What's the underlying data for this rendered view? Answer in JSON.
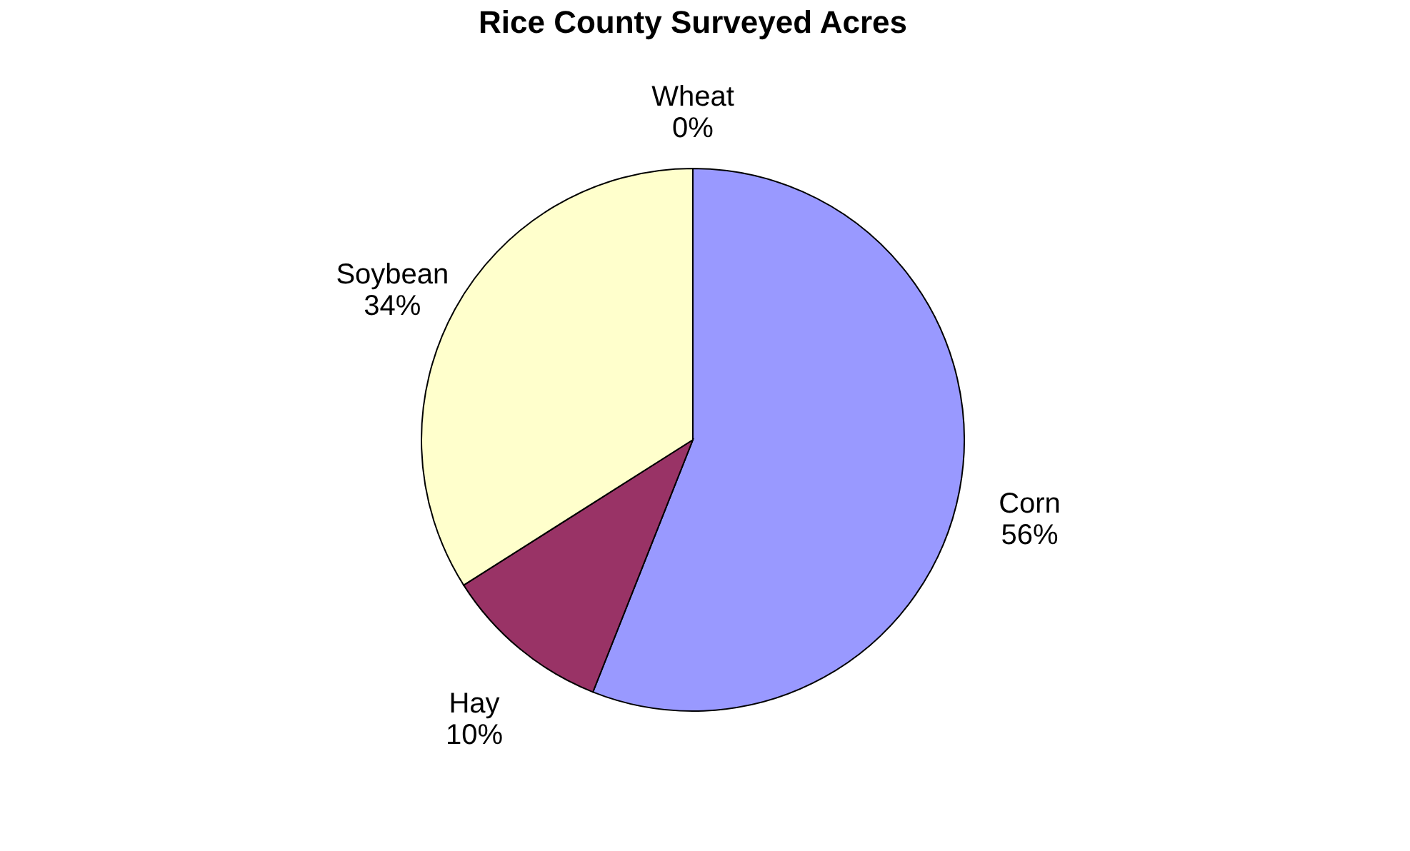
{
  "chart_data": {
    "type": "pie",
    "title": "Rice  County Surveyed Acres",
    "categories": [
      "Corn",
      "Hay",
      "Soybean",
      "Wheat"
    ],
    "values": [
      56,
      10,
      34,
      0
    ],
    "colors": [
      "#9999ff",
      "#993366",
      "#ffffcc",
      "#ccffff"
    ],
    "value_labels": [
      "56%",
      "10%",
      "34%",
      "0%"
    ],
    "legend": false
  }
}
